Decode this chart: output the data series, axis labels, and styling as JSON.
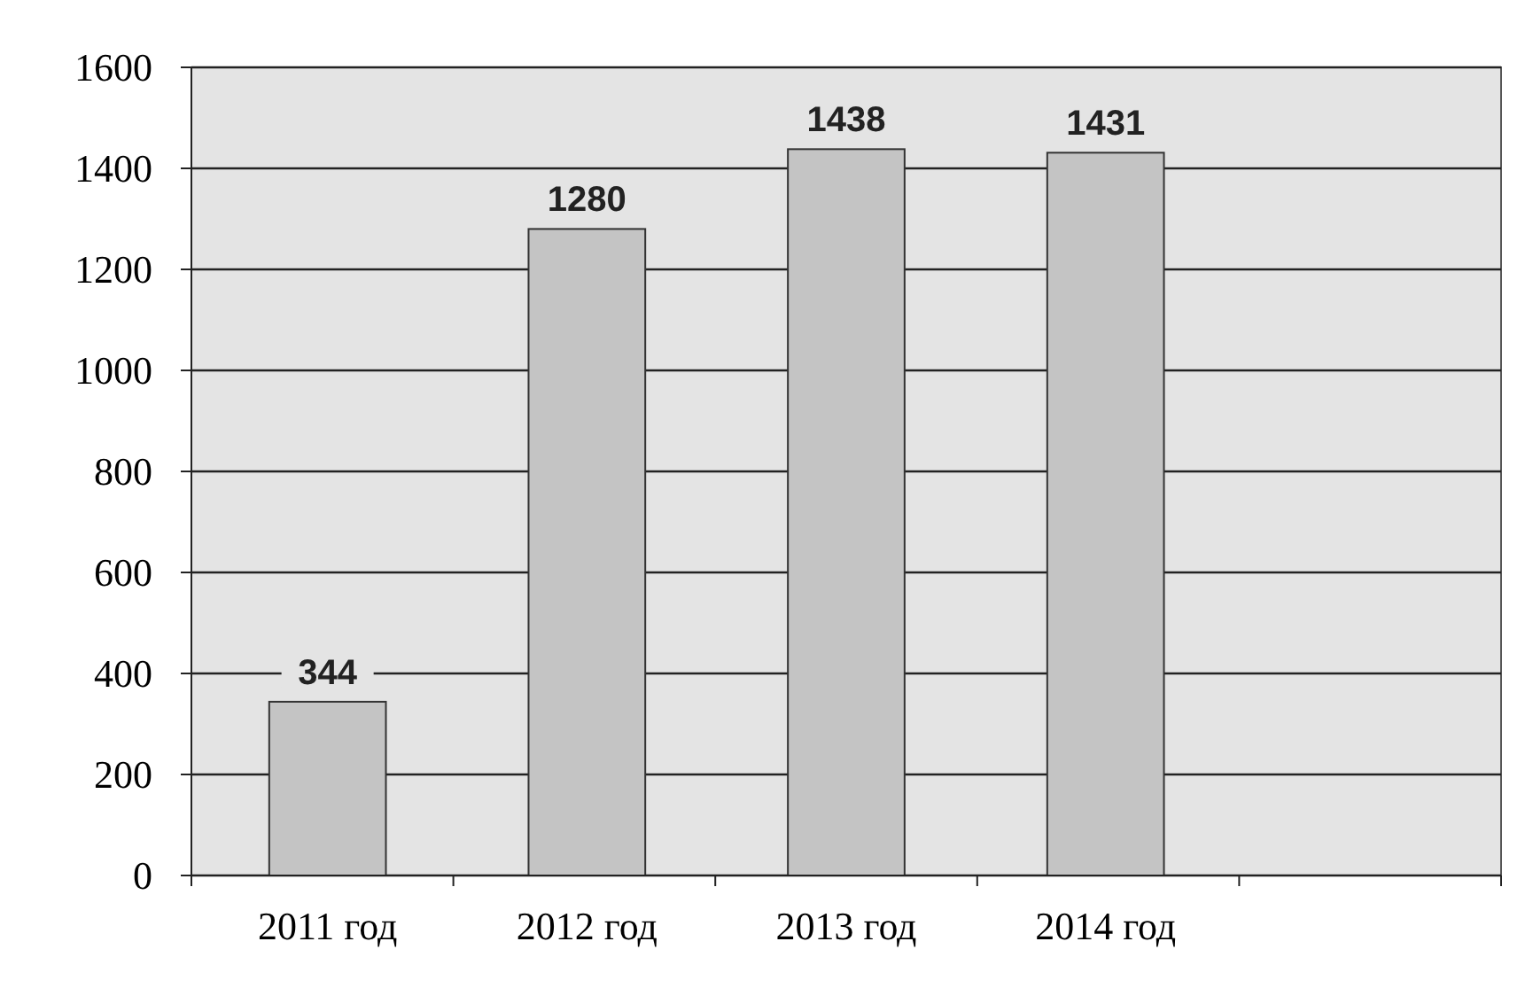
{
  "chart_data": {
    "type": "bar",
    "categories": [
      "2011 год",
      "2012 год",
      "2013 год",
      "2014 год",
      null
    ],
    "values": [
      344,
      1280,
      1438,
      1431,
      null
    ],
    "color": "#c4c4c4",
    "ylim": [
      0,
      1600
    ],
    "yticks": [
      0,
      200,
      400,
      600,
      800,
      1000,
      1200,
      1400,
      1600
    ],
    "grid": "y",
    "data_labels": true
  }
}
